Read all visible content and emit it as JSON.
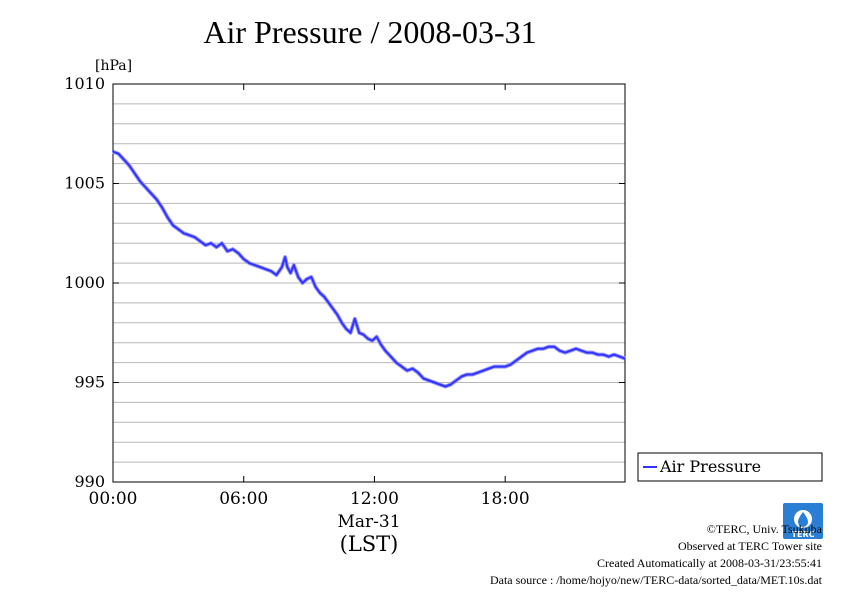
{
  "chart_data": {
    "type": "line",
    "title": "Air Pressure / 2008-03-31",
    "unit_label": "[hPa]",
    "xlabel_date": "Mar-31",
    "xlabel": "(LST)",
    "x_ticks": [
      "00:00",
      "06:00",
      "12:00",
      "18:00"
    ],
    "y_ticks": [
      "990",
      "995",
      "1000",
      "1005",
      "1010"
    ],
    "ylim": [
      990,
      1010
    ],
    "xlim_hours": [
      0,
      23.5
    ],
    "grid": true,
    "legend_position": "right",
    "series": [
      {
        "name": "Air Pressure",
        "color": "#3333ff",
        "x_hours": [
          0.0,
          0.25,
          0.5,
          0.75,
          1.0,
          1.25,
          1.5,
          1.75,
          2.0,
          2.25,
          2.5,
          2.75,
          3.0,
          3.25,
          3.5,
          3.75,
          4.0,
          4.25,
          4.5,
          4.75,
          5.0,
          5.25,
          5.5,
          5.75,
          6.0,
          6.25,
          6.5,
          6.75,
          7.0,
          7.25,
          7.5,
          7.75,
          7.9,
          8.0,
          8.15,
          8.3,
          8.5,
          8.7,
          8.9,
          9.1,
          9.3,
          9.5,
          9.7,
          9.9,
          10.1,
          10.3,
          10.5,
          10.7,
          10.9,
          11.1,
          11.3,
          11.5,
          11.7,
          11.9,
          12.1,
          12.3,
          12.5,
          12.75,
          13.0,
          13.25,
          13.5,
          13.75,
          14.0,
          14.25,
          14.5,
          14.75,
          15.0,
          15.25,
          15.5,
          15.75,
          16.0,
          16.25,
          16.5,
          16.75,
          17.0,
          17.25,
          17.5,
          17.75,
          18.0,
          18.25,
          18.5,
          18.75,
          19.0,
          19.25,
          19.5,
          19.75,
          20.0,
          20.25,
          20.5,
          20.75,
          21.0,
          21.25,
          21.5,
          21.75,
          22.0,
          22.25,
          22.5,
          22.75,
          23.0,
          23.25,
          23.5
        ],
        "values": [
          1006.6,
          1006.5,
          1006.2,
          1005.9,
          1005.5,
          1005.1,
          1004.8,
          1004.5,
          1004.2,
          1003.8,
          1003.3,
          1002.9,
          1002.7,
          1002.5,
          1002.4,
          1002.3,
          1002.1,
          1001.9,
          1002.0,
          1001.8,
          1002.0,
          1001.6,
          1001.7,
          1001.5,
          1001.2,
          1001.0,
          1000.9,
          1000.8,
          1000.7,
          1000.6,
          1000.4,
          1000.8,
          1001.3,
          1000.8,
          1000.5,
          1000.9,
          1000.3,
          1000.0,
          1000.2,
          1000.3,
          999.8,
          999.5,
          999.3,
          999.0,
          998.7,
          998.4,
          998.0,
          997.7,
          997.5,
          998.2,
          997.5,
          997.4,
          997.2,
          997.1,
          997.3,
          996.9,
          996.6,
          996.3,
          996.0,
          995.8,
          995.6,
          995.7,
          995.5,
          995.2,
          995.1,
          995.0,
          994.9,
          994.8,
          994.9,
          995.1,
          995.3,
          995.4,
          995.4,
          995.5,
          995.6,
          995.7,
          995.8,
          995.8,
          995.8,
          995.9,
          996.1,
          996.3,
          996.5,
          996.6,
          996.7,
          996.7,
          996.8,
          996.8,
          996.6,
          996.5,
          996.6,
          996.7,
          996.6,
          996.5,
          996.5,
          996.4,
          996.4,
          996.3,
          996.4,
          996.3,
          996.2
        ]
      }
    ]
  },
  "credits": {
    "copyright": "©TERC, Univ. Tsukuba",
    "observed": "Observed at TERC Tower site",
    "created": "Created Automatically at 2008-03-31/23:55:41",
    "source": "Data source : /home/hojyo/new/TERC-data/sorted_data/MET.10s.dat",
    "logo_text": "TERC"
  }
}
